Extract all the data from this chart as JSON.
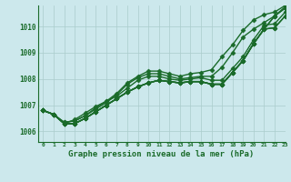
{
  "background_color": "#cce8ec",
  "grid_color": "#aacccc",
  "line_color": "#1a6b2a",
  "xlabel": "Graphe pression niveau de la mer (hPa)",
  "xlim": [
    -0.5,
    23
  ],
  "ylim": [
    1005.6,
    1010.8
  ],
  "yticks": [
    1006,
    1007,
    1008,
    1009,
    1010
  ],
  "xticks": [
    0,
    1,
    2,
    3,
    4,
    5,
    6,
    7,
    8,
    9,
    10,
    11,
    12,
    13,
    14,
    15,
    16,
    17,
    18,
    19,
    20,
    21,
    22,
    23
  ],
  "series": [
    [
      1006.8,
      1006.65,
      1006.3,
      1006.3,
      1006.5,
      1006.75,
      1007.0,
      1007.25,
      1007.5,
      1007.7,
      1007.85,
      1007.95,
      1007.9,
      1007.85,
      1007.9,
      1007.9,
      1007.8,
      1007.8,
      1008.25,
      1008.7,
      1009.35,
      1009.9,
      1010.4,
      1010.7
    ],
    [
      1006.8,
      1006.65,
      1006.3,
      1006.3,
      1006.5,
      1006.75,
      1007.0,
      1007.25,
      1007.5,
      1007.7,
      1007.85,
      1007.95,
      1007.9,
      1007.85,
      1007.9,
      1007.9,
      1007.8,
      1007.8,
      1008.25,
      1008.7,
      1009.35,
      1009.9,
      1010.4,
      1010.7
    ],
    [
      1006.8,
      1006.65,
      1006.3,
      1006.3,
      1006.5,
      1006.75,
      1007.0,
      1007.25,
      1007.5,
      1007.7,
      1007.85,
      1007.95,
      1007.9,
      1007.85,
      1007.9,
      1007.9,
      1007.8,
      1007.8,
      1008.25,
      1008.7,
      1009.35,
      1009.9,
      1009.95,
      1010.4
    ],
    [
      1006.8,
      1006.65,
      1006.3,
      1006.3,
      1006.5,
      1006.75,
      1007.0,
      1007.25,
      1007.5,
      1007.7,
      1007.85,
      1007.95,
      1007.9,
      1007.85,
      1007.9,
      1007.9,
      1007.8,
      1007.8,
      1008.25,
      1008.7,
      1009.35,
      1009.9,
      1009.95,
      1010.4
    ],
    [
      1006.8,
      1006.65,
      1006.3,
      1006.45,
      1006.7,
      1006.95,
      1007.15,
      1007.35,
      1007.65,
      1007.95,
      1008.1,
      1008.1,
      1008.0,
      1007.95,
      1008.0,
      1008.05,
      1007.95,
      1007.95,
      1008.4,
      1008.85,
      1009.5,
      1010.05,
      1010.1,
      1010.55
    ]
  ],
  "series_top": [
    1006.8,
    1006.65,
    1006.35,
    1006.4,
    1006.6,
    1006.85,
    1007.1,
    1007.4,
    1007.8,
    1008.05,
    1008.2,
    1008.2,
    1008.1,
    1008.0,
    1008.05,
    1008.1,
    1008.1,
    1008.45,
    1009.0,
    1009.6,
    1009.9,
    1010.15,
    1010.4,
    1010.75
  ],
  "series_diverge": [
    1006.8,
    1006.65,
    1006.35,
    1006.4,
    1006.6,
    1006.9,
    1007.15,
    1007.45,
    1007.85,
    1008.1,
    1008.3,
    1008.3,
    1008.2,
    1008.1,
    1008.2,
    1008.25,
    1008.35,
    1008.85,
    1009.3,
    1009.85,
    1010.25,
    1010.45,
    1010.55,
    1010.8
  ],
  "marker": "D",
  "marker_size": 2.5,
  "line_width": 1.0
}
